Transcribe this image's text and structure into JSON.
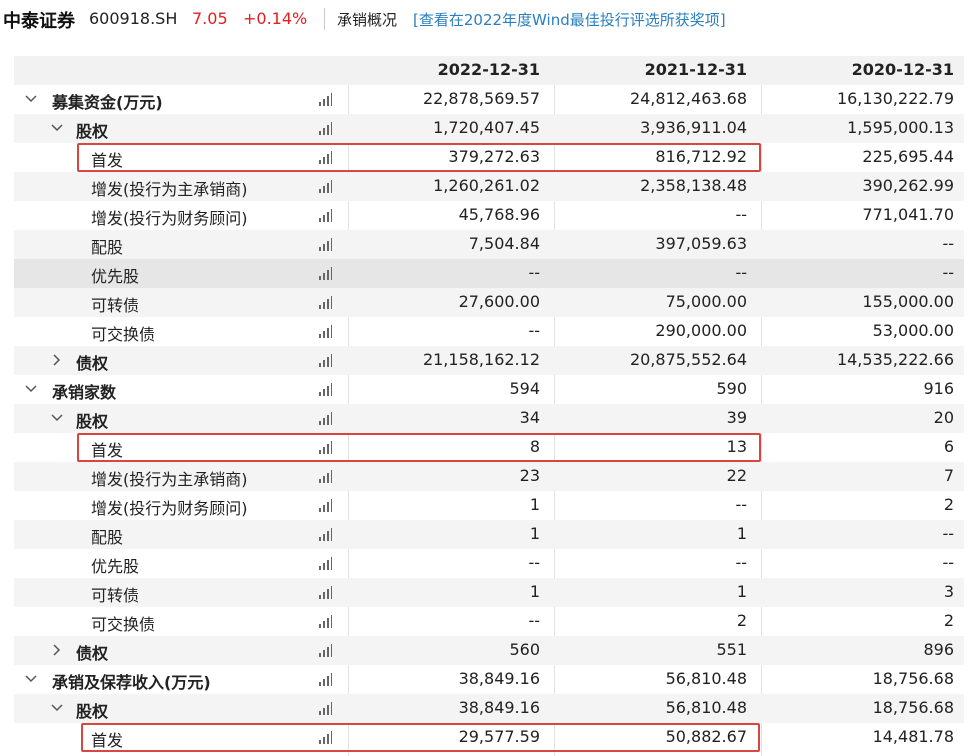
{
  "header": {
    "company": "中泰证券",
    "code": "600918.SH",
    "price": "7.05",
    "change": "+0.14%",
    "section_title": "承销概况",
    "link_text": "[查看在2022年度Wind最佳投行评选所获奖项]"
  },
  "columns": [
    "2022-12-31",
    "2021-12-31",
    "2020-12-31"
  ],
  "rows": [
    {
      "label": "募集资金(万元)",
      "level": 0,
      "toggle": "down",
      "bold": true,
      "values": [
        "22,878,569.57",
        "24,812,463.68",
        "16,130,222.79"
      ]
    },
    {
      "label": "股权",
      "level": 1,
      "toggle": "down",
      "bold": true,
      "values": [
        "1,720,407.45",
        "3,936,911.04",
        "1,595,000.13"
      ]
    },
    {
      "label": "首发",
      "level": 2,
      "highlight": true,
      "values": [
        "379,272.63",
        "816,712.92",
        "225,695.44"
      ]
    },
    {
      "label": "增发(投行为主承销商)",
      "level": 2,
      "values": [
        "1,260,261.02",
        "2,358,138.48",
        "390,262.99"
      ]
    },
    {
      "label": "增发(投行为财务顾问)",
      "level": 2,
      "values": [
        "45,768.96",
        "--",
        "771,041.70"
      ]
    },
    {
      "label": "配股",
      "level": 2,
      "values": [
        "7,504.84",
        "397,059.63",
        "--"
      ]
    },
    {
      "label": "优先股",
      "level": 2,
      "values": [
        "--",
        "--",
        "--"
      ]
    },
    {
      "label": "可转债",
      "level": 2,
      "values": [
        "27,600.00",
        "75,000.00",
        "155,000.00"
      ]
    },
    {
      "label": "可交换债",
      "level": 2,
      "values": [
        "--",
        "290,000.00",
        "53,000.00"
      ]
    },
    {
      "label": "债权",
      "level": 1,
      "toggle": "right",
      "bold": true,
      "values": [
        "21,158,162.12",
        "20,875,552.64",
        "14,535,222.66"
      ]
    },
    {
      "label": "承销家数",
      "level": 0,
      "toggle": "down",
      "bold": true,
      "values": [
        "594",
        "590",
        "916"
      ]
    },
    {
      "label": "股权",
      "level": 1,
      "toggle": "down",
      "bold": true,
      "values": [
        "34",
        "39",
        "20"
      ]
    },
    {
      "label": "首发",
      "level": 2,
      "highlight": true,
      "values": [
        "8",
        "13",
        "6"
      ]
    },
    {
      "label": "增发(投行为主承销商)",
      "level": 2,
      "values": [
        "23",
        "22",
        "7"
      ]
    },
    {
      "label": "增发(投行为财务顾问)",
      "level": 2,
      "values": [
        "1",
        "--",
        "2"
      ]
    },
    {
      "label": "配股",
      "level": 2,
      "values": [
        "1",
        "1",
        "--"
      ]
    },
    {
      "label": "优先股",
      "level": 2,
      "values": [
        "--",
        "--",
        "--"
      ]
    },
    {
      "label": "可转债",
      "level": 2,
      "values": [
        "1",
        "1",
        "3"
      ]
    },
    {
      "label": "可交换债",
      "level": 2,
      "values": [
        "--",
        "2",
        "2"
      ]
    },
    {
      "label": "债权",
      "level": 1,
      "toggle": "right",
      "bold": true,
      "values": [
        "560",
        "551",
        "896"
      ]
    },
    {
      "label": "承销及保荐收入(万元)",
      "level": 0,
      "toggle": "down",
      "bold": true,
      "values": [
        "38,849.16",
        "56,810.48",
        "18,756.68"
      ]
    },
    {
      "label": "股权",
      "level": 1,
      "toggle": "down",
      "bold": true,
      "values": [
        "38,849.16",
        "56,810.48",
        "18,756.68"
      ]
    },
    {
      "label": "首发",
      "level": 2,
      "highlight": true,
      "values": [
        "29,577.59",
        "50,882.67",
        "14,481.78"
      ]
    }
  ],
  "colors": {
    "accent_red": "#e02020",
    "highlight_box": "#d9453f",
    "link": "#2a7fbf"
  },
  "icons": {
    "toggle_down": "chevron-down-icon",
    "toggle_right": "chevron-right-icon",
    "row_chart": "bar-chart-icon"
  }
}
